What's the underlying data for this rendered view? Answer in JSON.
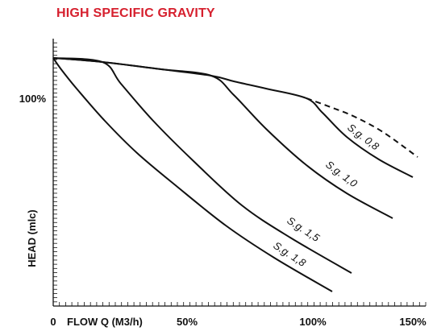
{
  "chart_data": {
    "type": "line",
    "title": "HIGH SPECIFIC GRAVITY",
    "xlabel": "FLOW Q (M3/h)",
    "ylabel": "HEAD  (mlc)",
    "x_tick_labels": [
      {
        "x": 0,
        "label": "0"
      },
      {
        "x": 50,
        "label": "50%"
      },
      {
        "x": 100,
        "label": "100%"
      },
      {
        "x": 150,
        "label": "150%"
      }
    ],
    "y_tick_labels": [
      {
        "y": 100,
        "label": "100%"
      }
    ],
    "xlim": [
      0,
      153
    ],
    "ylim": [
      -13,
      116
    ],
    "grid": false,
    "series": [
      {
        "name": "S.g. 1,8",
        "style": "solid",
        "x": [
          0,
          20,
          40,
          60,
          80,
          100,
          110
        ],
        "y": [
          116,
          88,
          65,
          45,
          27,
          11,
          4
        ]
      },
      {
        "name": "S.g. 1,5",
        "style": "solid",
        "x": [
          0,
          20,
          40,
          60,
          80,
          100,
          120
        ],
        "y": [
          116,
          113,
          91,
          70,
          49,
          30,
          9
        ]
      },
      {
        "name": "S.g. 1,0",
        "style": "solid",
        "x": [
          0,
          20,
          40,
          60,
          80,
          100,
          120,
          140
        ],
        "y": [
          116,
          113,
          111,
          108,
          90,
          70,
          50,
          32
        ]
      },
      {
        "name": "S.g. 0,8",
        "style": "solid",
        "x": [
          0,
          20,
          40,
          60,
          80,
          100,
          115,
          135,
          150
        ],
        "y": [
          116,
          113,
          111,
          108,
          105,
          100,
          87,
          71,
          60
        ]
      },
      {
        "name": "S.g. 0,8",
        "style": "dashed",
        "x": [
          100,
          115,
          130,
          150
        ],
        "y": [
          100,
          96,
          88,
          72
        ]
      }
    ],
    "annotations": [
      {
        "text": "S.g. 0,8"
      },
      {
        "text": "S.g. 1,0"
      },
      {
        "text": "S.g. 1,5"
      },
      {
        "text": "S.g. 1,8"
      }
    ]
  }
}
